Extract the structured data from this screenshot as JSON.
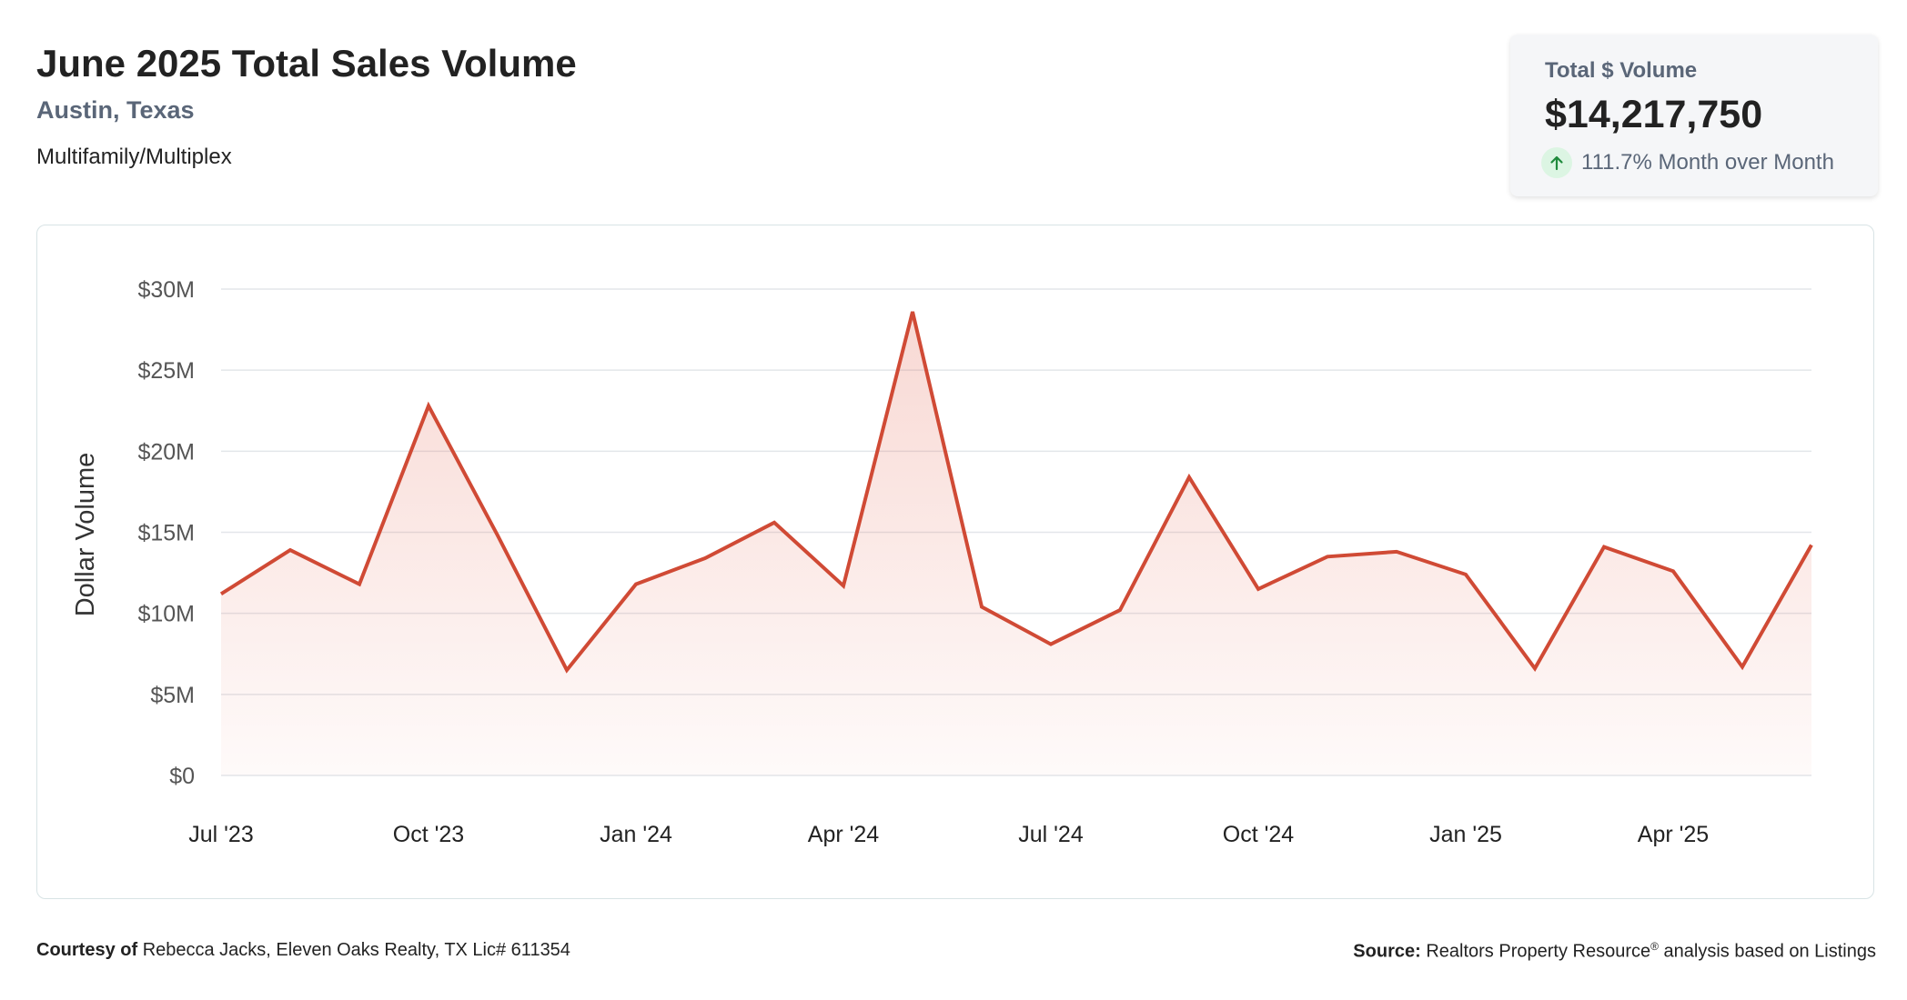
{
  "header": {
    "title": "June 2025 Total Sales Volume",
    "location": "Austin, Texas",
    "category": "Multifamily/Multiplex"
  },
  "kpi": {
    "label": "Total $ Volume",
    "value": "$14,217,750",
    "change": "111.7% Month over Month",
    "icon": "arrow-up-icon",
    "icon_color": "#1f8a3c"
  },
  "footer": {
    "courtesy_label": "Courtesy of",
    "courtesy_text": "Rebecca Jacks, Eleven Oaks Realty, TX Lic# 611354",
    "source_label": "Source:",
    "source_text_1": "Realtors Property Resource",
    "source_mark": "®",
    "source_text_2": " analysis based on Listings"
  },
  "chart_data": {
    "type": "area",
    "title": "",
    "xlabel": "",
    "ylabel": "Dollar Volume",
    "ylim": [
      0,
      30000000
    ],
    "y_ticks": [
      0,
      5000000,
      10000000,
      15000000,
      20000000,
      25000000,
      30000000
    ],
    "y_tick_labels": [
      "$0",
      "$5M",
      "$10M",
      "$15M",
      "$20M",
      "$25M",
      "$30M"
    ],
    "x_tick_indices": [
      0,
      3,
      6,
      9,
      12,
      15,
      18,
      21
    ],
    "x_tick_labels": [
      "Jul '23",
      "Oct '23",
      "Jan '24",
      "Apr '24",
      "Jul '24",
      "Oct '24",
      "Jan '25",
      "Apr '25"
    ],
    "categories": [
      "Jul 2023",
      "Aug 2023",
      "Sep 2023",
      "Oct 2023",
      "Nov 2023",
      "Dec 2023",
      "Jan 2024",
      "Feb 2024",
      "Mar 2024",
      "Apr 2024",
      "May 2024",
      "Jun 2024",
      "Jul 2024",
      "Aug 2024",
      "Sep 2024",
      "Oct 2024",
      "Nov 2024",
      "Dec 2024",
      "Jan 2025",
      "Feb 2025",
      "Mar 2025",
      "Apr 2025",
      "May 2025",
      "Jun 2025"
    ],
    "series": [
      {
        "name": "Total $ Volume",
        "color": "#d04a35",
        "values": [
          11200000,
          13900000,
          11800000,
          22800000,
          14800000,
          6500000,
          11800000,
          13400000,
          15600000,
          11700000,
          28600000,
          10400000,
          8100000,
          10200000,
          18400000,
          11500000,
          13500000,
          13800000,
          12400000,
          6600000,
          14100000,
          12600000,
          6700000,
          14217750
        ]
      }
    ],
    "grid": true
  }
}
